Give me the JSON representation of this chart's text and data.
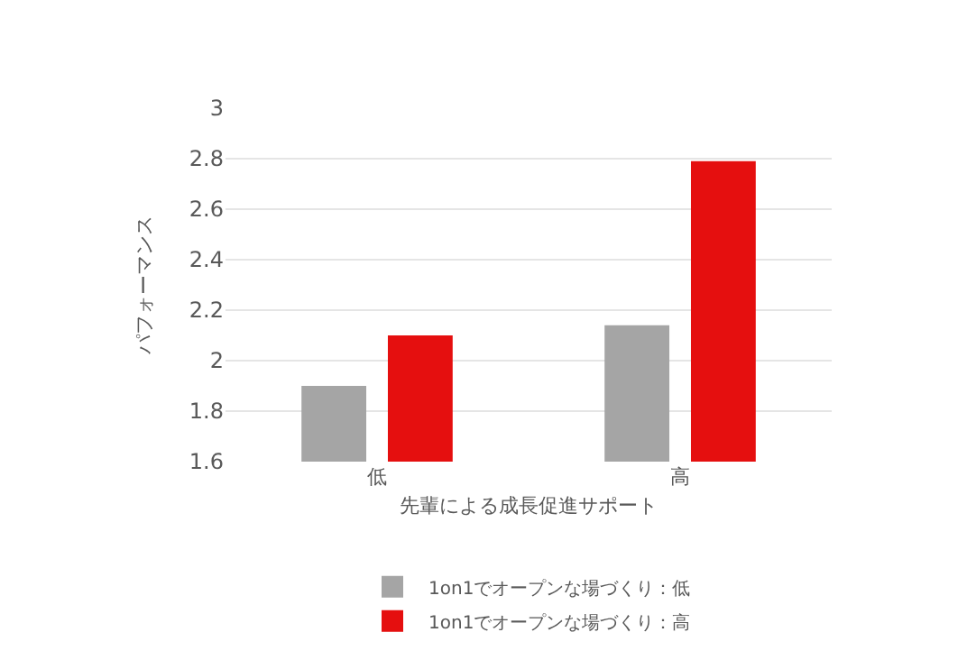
{
  "chart_data": {
    "type": "bar",
    "xlabel": "先輩による成長促進サポート",
    "ylabel": "パフォーマンス",
    "categories": [
      "低",
      "高"
    ],
    "series": [
      {
        "name": "1on1でオープンな場づくり：低",
        "color": "#a5a5a5",
        "values": [
          1.9,
          2.14
        ]
      },
      {
        "name": "1on1でオープンな場づくり：高",
        "color": "#e50f0f",
        "values": [
          2.1,
          2.79
        ]
      }
    ],
    "ylim": [
      1.6,
      3
    ],
    "yticks": [
      1.6,
      1.8,
      2,
      2.2,
      2.4,
      2.6,
      2.8,
      3
    ],
    "grid": "y",
    "legend": "bottom"
  }
}
